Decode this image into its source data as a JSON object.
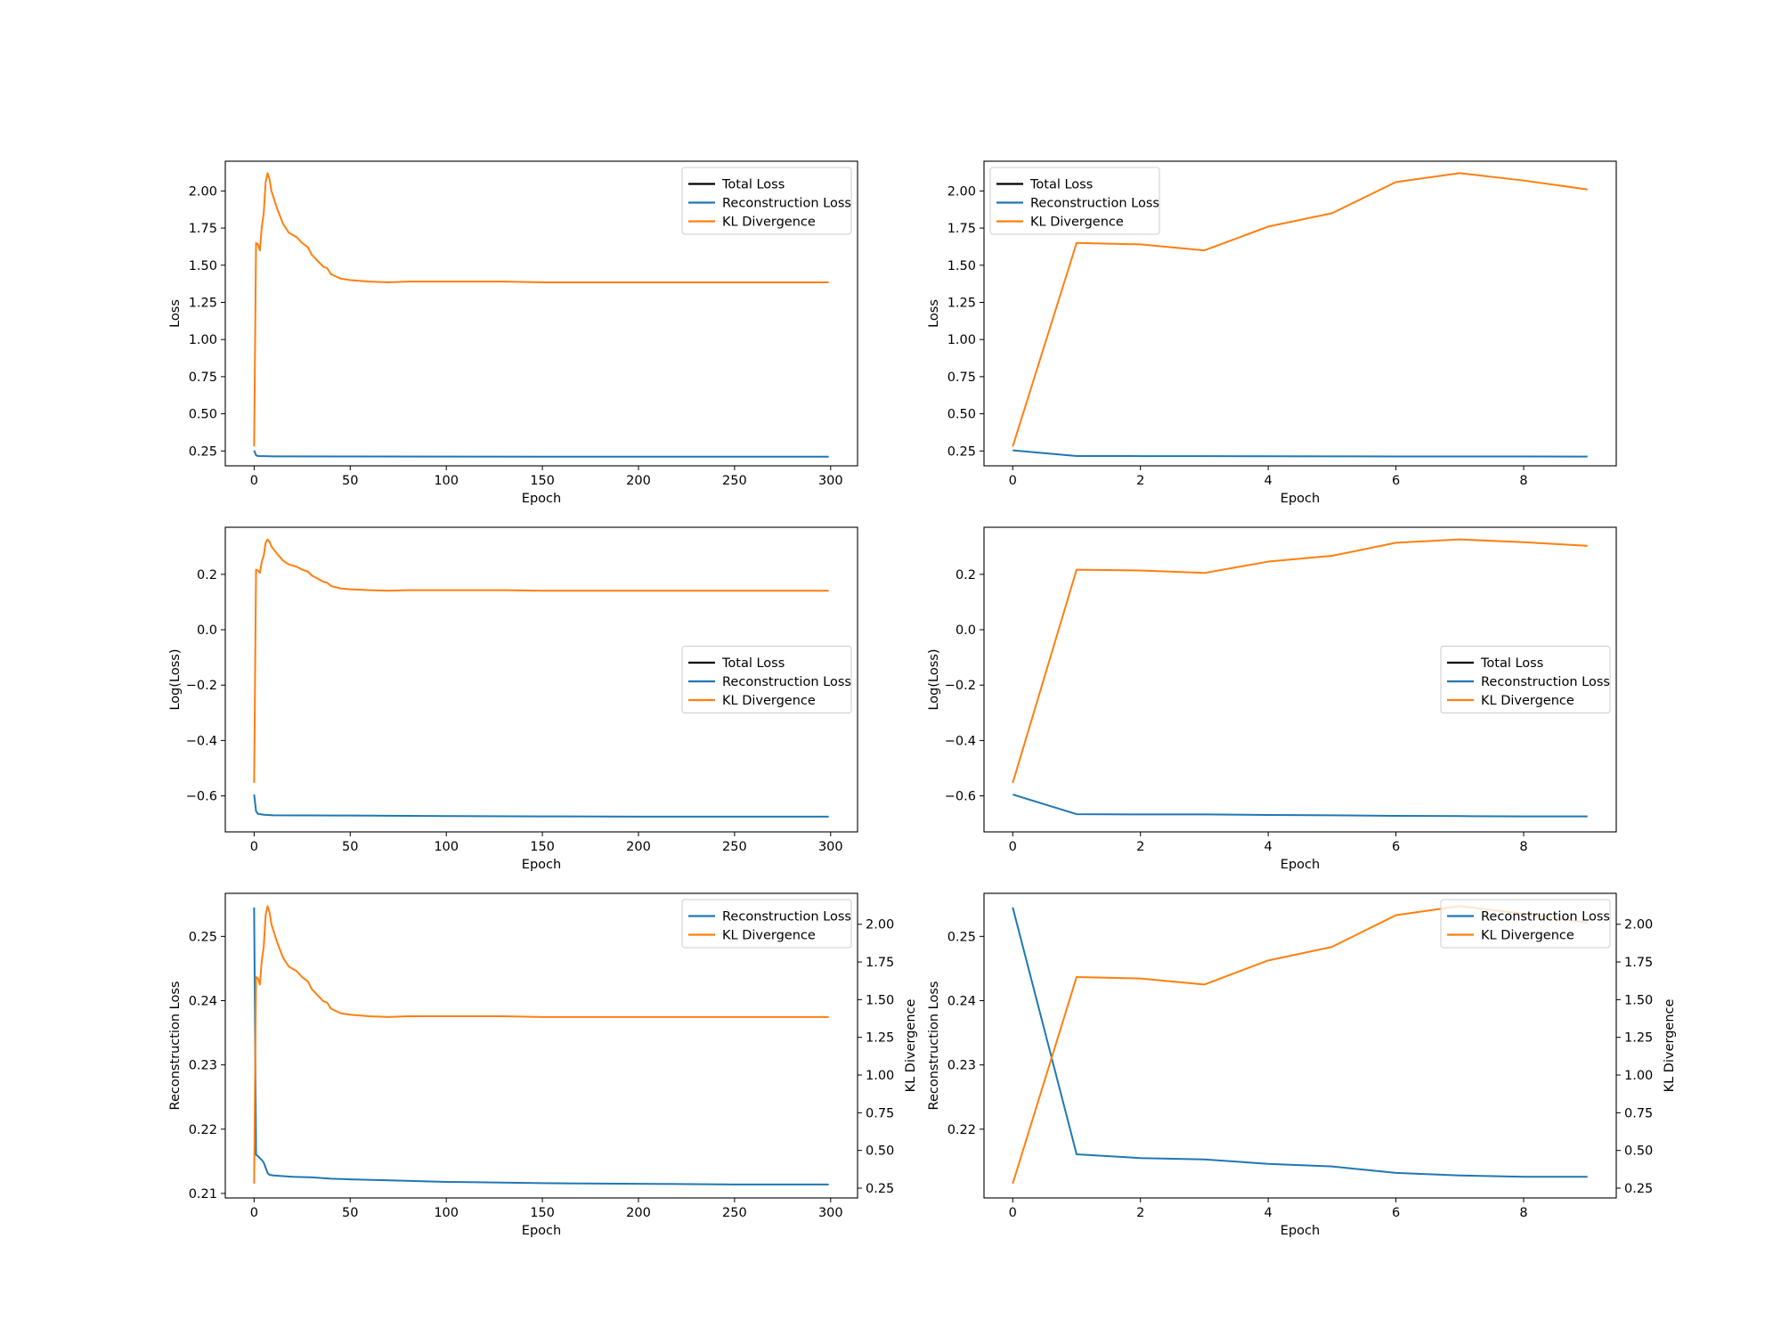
{
  "colors": {
    "total": "#000000",
    "recon": "#1f77b4",
    "kl": "#ff7f0e"
  },
  "chart_data": [
    {
      "id": "p1",
      "type": "line",
      "xlabel": "Epoch",
      "ylabel": "Loss",
      "xlim": [
        -15,
        314
      ],
      "ylim": [
        0.15,
        2.2
      ],
      "xticks": [
        "0",
        "50",
        "100",
        "150",
        "200",
        "250",
        "300"
      ],
      "yticks": [
        "0.25",
        "0.50",
        "0.75",
        "1.00",
        "1.25",
        "1.50",
        "1.75",
        "2.00"
      ],
      "legend_position": "upper right",
      "series": [
        {
          "name": "Total Loss",
          "color_key": "total",
          "x": [],
          "y": []
        },
        {
          "name": "Reconstruction Loss",
          "color_key": "recon",
          "x": [
            0,
            1,
            2,
            5,
            10,
            50,
            100,
            150,
            200,
            250,
            299
          ],
          "y": [
            0.254,
            0.221,
            0.216,
            0.215,
            0.214,
            0.213,
            0.212,
            0.2115,
            0.2113,
            0.2112,
            0.2112
          ]
        },
        {
          "name": "KL Divergence",
          "color_key": "kl",
          "x": [
            0,
            1,
            2,
            3,
            4,
            5,
            6,
            7,
            8,
            9,
            12,
            15,
            18,
            22,
            25,
            28,
            30,
            33,
            36,
            38,
            40,
            45,
            50,
            60,
            70,
            80,
            100,
            130,
            150,
            200,
            250,
            299
          ],
          "y": [
            0.28,
            1.65,
            1.64,
            1.6,
            1.76,
            1.85,
            2.06,
            2.12,
            2.08,
            2.0,
            1.88,
            1.78,
            1.72,
            1.69,
            1.65,
            1.62,
            1.57,
            1.53,
            1.49,
            1.48,
            1.44,
            1.41,
            1.4,
            1.39,
            1.385,
            1.39,
            1.39,
            1.39,
            1.385,
            1.385,
            1.385,
            1.385
          ]
        }
      ]
    },
    {
      "id": "p2",
      "type": "line",
      "xlabel": "Epoch",
      "ylabel": "Loss",
      "xlim": [
        -0.45,
        9.45
      ],
      "ylim": [
        0.15,
        2.2
      ],
      "xticks": [
        "0",
        "2",
        "4",
        "6",
        "8"
      ],
      "yticks": [
        "0.25",
        "0.50",
        "0.75",
        "1.00",
        "1.25",
        "1.50",
        "1.75",
        "2.00"
      ],
      "legend_position": "upper left",
      "series": [
        {
          "name": "Total Loss",
          "color_key": "total",
          "x": [],
          "y": []
        },
        {
          "name": "Reconstruction Loss",
          "color_key": "recon",
          "x": [
            0,
            1,
            2,
            3,
            4,
            5,
            6,
            7,
            8,
            9
          ],
          "y": [
            0.254,
            0.216,
            0.2155,
            0.2152,
            0.2145,
            0.214,
            0.2132,
            0.2128,
            0.2126,
            0.2125
          ]
        },
        {
          "name": "KL Divergence",
          "color_key": "kl",
          "x": [
            0,
            1,
            2,
            3,
            4,
            5,
            6,
            7,
            8,
            9
          ],
          "y": [
            0.28,
            1.65,
            1.64,
            1.6,
            1.76,
            1.85,
            2.06,
            2.12,
            2.07,
            2.01
          ]
        }
      ]
    },
    {
      "id": "p3",
      "type": "line",
      "xlabel": "Epoch",
      "ylabel": "Log(Loss)",
      "xlim": [
        -15,
        314
      ],
      "ylim": [
        -0.73,
        0.37
      ],
      "xticks": [
        "0",
        "50",
        "100",
        "150",
        "200",
        "250",
        "300"
      ],
      "yticks": [
        "−0.6",
        "−0.4",
        "−0.2",
        "0.0",
        "0.2"
      ],
      "legend_position": "center right",
      "series": [
        {
          "name": "Total Loss",
          "color_key": "total",
          "x": [],
          "y": []
        },
        {
          "name": "Reconstruction Loss",
          "color_key": "recon",
          "x": [
            0,
            1,
            2,
            5,
            10,
            50,
            100,
            150,
            200,
            250,
            299
          ],
          "y": [
            -0.595,
            -0.655,
            -0.665,
            -0.668,
            -0.67,
            -0.671,
            -0.673,
            -0.674,
            -0.675,
            -0.675,
            -0.675
          ]
        },
        {
          "name": "KL Divergence",
          "color_key": "kl",
          "x": [
            0,
            1,
            2,
            3,
            4,
            5,
            6,
            7,
            8,
            9,
            12,
            15,
            18,
            22,
            25,
            28,
            30,
            33,
            36,
            38,
            40,
            45,
            50,
            60,
            70,
            80,
            100,
            130,
            150,
            200,
            250,
            299
          ],
          "y": [
            -0.553,
            0.217,
            0.214,
            0.205,
            0.246,
            0.267,
            0.314,
            0.326,
            0.318,
            0.301,
            0.274,
            0.25,
            0.236,
            0.228,
            0.217,
            0.21,
            0.196,
            0.185,
            0.173,
            0.17,
            0.158,
            0.149,
            0.146,
            0.143,
            0.141,
            0.143,
            0.143,
            0.143,
            0.141,
            0.141,
            0.141,
            0.141
          ]
        }
      ]
    },
    {
      "id": "p4",
      "type": "line",
      "xlabel": "Epoch",
      "ylabel": "Log(Loss)",
      "xlim": [
        -0.45,
        9.45
      ],
      "ylim": [
        -0.73,
        0.37
      ],
      "xticks": [
        "0",
        "2",
        "4",
        "6",
        "8"
      ],
      "yticks": [
        "−0.6",
        "−0.4",
        "−0.2",
        "0.0",
        "0.2"
      ],
      "legend_position": "center right",
      "series": [
        {
          "name": "Total Loss",
          "color_key": "total",
          "x": [],
          "y": []
        },
        {
          "name": "Reconstruction Loss",
          "color_key": "recon",
          "x": [
            0,
            1,
            2,
            3,
            4,
            5,
            6,
            7,
            8,
            9
          ],
          "y": [
            -0.595,
            -0.666,
            -0.667,
            -0.667,
            -0.669,
            -0.67,
            -0.672,
            -0.673,
            -0.674,
            -0.674
          ]
        },
        {
          "name": "KL Divergence",
          "color_key": "kl",
          "x": [
            0,
            1,
            2,
            3,
            4,
            5,
            6,
            7,
            8,
            9
          ],
          "y": [
            -0.553,
            0.217,
            0.214,
            0.205,
            0.246,
            0.267,
            0.314,
            0.326,
            0.316,
            0.303
          ]
        }
      ]
    },
    {
      "id": "p5",
      "type": "line",
      "xlabel": "Epoch",
      "ylabel": "Reconstruction Loss",
      "ylabel2": "KL Divergence",
      "xlim": [
        -15,
        314
      ],
      "ylim": [
        0.2093,
        0.2567
      ],
      "ylim2": [
        0.185,
        2.205
      ],
      "xticks": [
        "0",
        "50",
        "100",
        "150",
        "200",
        "250",
        "300"
      ],
      "yticks": [
        "0.21",
        "0.22",
        "0.23",
        "0.24",
        "0.25"
      ],
      "yticks2": [
        "0.25",
        "0.50",
        "0.75",
        "1.00",
        "1.25",
        "1.50",
        "1.75",
        "2.00"
      ],
      "legend_position": "upper right",
      "series": [
        {
          "name": "Reconstruction Loss",
          "color_key": "recon",
          "axis": "left",
          "x": [
            0,
            1,
            2,
            3,
            4,
            5,
            6,
            7,
            8,
            10,
            15,
            20,
            30,
            40,
            50,
            75,
            100,
            150,
            200,
            250,
            299
          ],
          "y": [
            0.2545,
            0.216,
            0.2158,
            0.2155,
            0.2152,
            0.2148,
            0.214,
            0.2132,
            0.2129,
            0.2128,
            0.2127,
            0.2126,
            0.2125,
            0.2123,
            0.2122,
            0.212,
            0.2118,
            0.2116,
            0.2115,
            0.2114,
            0.2114
          ]
        },
        {
          "name": "KL Divergence",
          "color_key": "kl",
          "axis": "right",
          "x": [
            0,
            1,
            2,
            3,
            4,
            5,
            6,
            7,
            8,
            9,
            12,
            15,
            18,
            22,
            25,
            28,
            30,
            33,
            36,
            38,
            40,
            45,
            50,
            60,
            70,
            80,
            100,
            130,
            150,
            200,
            250,
            299
          ],
          "y": [
            0.28,
            1.65,
            1.64,
            1.6,
            1.76,
            1.85,
            2.06,
            2.12,
            2.08,
            2.0,
            1.88,
            1.78,
            1.72,
            1.69,
            1.65,
            1.62,
            1.57,
            1.53,
            1.49,
            1.48,
            1.44,
            1.41,
            1.4,
            1.39,
            1.385,
            1.39,
            1.39,
            1.39,
            1.385,
            1.385,
            1.385,
            1.385
          ]
        }
      ]
    },
    {
      "id": "p6",
      "type": "line",
      "xlabel": "Epoch",
      "ylabel": "Reconstruction Loss",
      "ylabel2": "KL Divergence",
      "xlim": [
        -0.45,
        9.45
      ],
      "ylim": [
        0.2093,
        0.2567
      ],
      "ylim2": [
        0.185,
        2.205
      ],
      "xticks": [
        "0",
        "2",
        "4",
        "6",
        "8"
      ],
      "yticks": [
        "0.22",
        "0.23",
        "0.24",
        "0.25"
      ],
      "yticks2": [
        "0.25",
        "0.50",
        "0.75",
        "1.00",
        "1.25",
        "1.50",
        "1.75",
        "2.00"
      ],
      "legend_position": "upper right",
      "series": [
        {
          "name": "Reconstruction Loss",
          "color_key": "recon",
          "axis": "left",
          "x": [
            0,
            1,
            2,
            3,
            4,
            5,
            6,
            7,
            8,
            9
          ],
          "y": [
            0.2545,
            0.2161,
            0.2155,
            0.2153,
            0.2146,
            0.2142,
            0.2132,
            0.2128,
            0.2126,
            0.2126
          ]
        },
        {
          "name": "KL Divergence",
          "color_key": "kl",
          "axis": "right",
          "x": [
            0,
            1,
            2,
            3,
            4,
            5,
            6,
            7,
            8,
            9
          ],
          "y": [
            0.28,
            1.65,
            1.64,
            1.6,
            1.76,
            1.85,
            2.06,
            2.12,
            2.07,
            2.01
          ]
        }
      ]
    }
  ]
}
